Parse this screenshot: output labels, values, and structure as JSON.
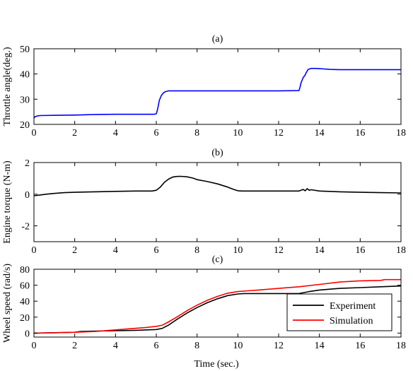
{
  "figure": {
    "xlabel": "Time (sec.)"
  },
  "chart_data": [
    {
      "type": "line",
      "title": "(a)",
      "xlabel": "",
      "ylabel": "Throttle angle(deg.)",
      "xlim": [
        0,
        18
      ],
      "ylim": [
        20,
        50
      ],
      "xticks": [
        0,
        2,
        4,
        6,
        8,
        10,
        12,
        14,
        16,
        18
      ],
      "yticks": [
        20,
        30,
        40,
        50
      ],
      "grid": false,
      "series": [
        {
          "color": "#0000ff",
          "x": [
            0,
            0.05,
            0.15,
            0.3,
            1,
            2,
            2.5,
            3,
            4,
            5,
            5.9,
            6.0,
            6.05,
            6.1,
            6.15,
            6.25,
            6.35,
            6.45,
            6.6,
            7,
            8,
            9,
            10,
            11,
            12,
            13.0,
            13.05,
            13.1,
            13.2,
            13.3,
            13.35,
            13.45,
            13.6,
            13.8,
            14.0,
            14.2,
            14.5,
            15,
            16,
            17,
            18
          ],
          "y": [
            22.5,
            23.0,
            23.3,
            23.5,
            23.6,
            23.7,
            23.8,
            23.9,
            24.0,
            24.0,
            24.0,
            24.2,
            25.5,
            27.5,
            29.5,
            31.5,
            32.5,
            33.0,
            33.3,
            33.3,
            33.3,
            33.3,
            33.3,
            33.3,
            33.3,
            33.4,
            34.8,
            36.5,
            38.5,
            39.6,
            40.5,
            41.8,
            42.2,
            42.2,
            42.1,
            42.0,
            41.8,
            41.7,
            41.7,
            41.7,
            41.7
          ]
        }
      ]
    },
    {
      "type": "line",
      "title": "(b)",
      "xlabel": "",
      "ylabel": "Engine torque (N-m)",
      "xlim": [
        0,
        18
      ],
      "ylim": [
        -3,
        2
      ],
      "xticks": [
        0,
        2,
        4,
        6,
        8,
        10,
        12,
        14,
        16,
        18
      ],
      "yticks": [
        -2,
        0,
        2
      ],
      "grid": false,
      "series": [
        {
          "color": "#000000",
          "x": [
            0,
            0.3,
            0.6,
            1,
            1.5,
            2,
            3,
            4,
            5,
            5.8,
            6.0,
            6.2,
            6.4,
            6.6,
            6.8,
            7.0,
            7.2,
            7.5,
            7.8,
            8.0,
            8.5,
            9.0,
            9.5,
            9.8,
            10.0,
            10.2,
            10.5,
            11,
            12,
            13.0,
            13.2,
            13.3,
            13.4,
            13.5,
            13.6,
            14,
            15,
            16,
            17,
            18
          ],
          "y": [
            -0.1,
            -0.05,
            0.0,
            0.05,
            0.1,
            0.12,
            0.15,
            0.18,
            0.2,
            0.2,
            0.25,
            0.45,
            0.75,
            0.95,
            1.08,
            1.12,
            1.13,
            1.1,
            1.02,
            0.92,
            0.8,
            0.65,
            0.45,
            0.3,
            0.22,
            0.2,
            0.2,
            0.2,
            0.2,
            0.2,
            0.3,
            0.22,
            0.35,
            0.25,
            0.28,
            0.2,
            0.15,
            0.12,
            0.1,
            0.08
          ]
        }
      ]
    },
    {
      "type": "line",
      "title": "(c)",
      "xlabel": "Time (sec.)",
      "ylabel": "Wheel speed (rad/s)",
      "xlim": [
        0,
        18
      ],
      "ylim": [
        -5,
        80
      ],
      "xticks": [
        0,
        2,
        4,
        6,
        8,
        10,
        12,
        14,
        16,
        18
      ],
      "yticks": [
        0,
        20,
        40,
        60,
        80
      ],
      "grid": false,
      "legend": "inside-right",
      "series": [
        {
          "name": "Experiment",
          "color": "#000000",
          "x": [
            0,
            1,
            2,
            2.3,
            3,
            4,
            5,
            6,
            6.3,
            6.6,
            7,
            7.5,
            8,
            8.5,
            9,
            9.5,
            10,
            10.3,
            11,
            12,
            13,
            13.5,
            14,
            15,
            16,
            17,
            18
          ],
          "y": [
            0,
            0.5,
            1,
            2,
            2.5,
            3,
            3.5,
            4.5,
            6,
            10,
            17,
            25,
            32,
            38,
            43,
            47,
            49,
            49.5,
            49.5,
            49.5,
            49.5,
            52,
            54,
            56,
            57,
            58,
            59
          ]
        },
        {
          "name": "Simulation",
          "color": "#ff0000",
          "x": [
            0,
            1,
            2,
            3,
            4,
            5,
            5.5,
            6,
            6.3,
            6.6,
            7,
            7.5,
            8,
            8.5,
            9,
            9.5,
            10,
            10.5,
            11,
            12,
            13,
            14,
            15,
            16,
            17,
            17.2,
            18
          ],
          "y": [
            0,
            0.3,
            1,
            2,
            4,
            6,
            7,
            8.5,
            10,
            14,
            20,
            28,
            35,
            41,
            46,
            50,
            52,
            53,
            54,
            56,
            58,
            61,
            64,
            65.5,
            66,
            67,
            67
          ]
        }
      ]
    }
  ]
}
